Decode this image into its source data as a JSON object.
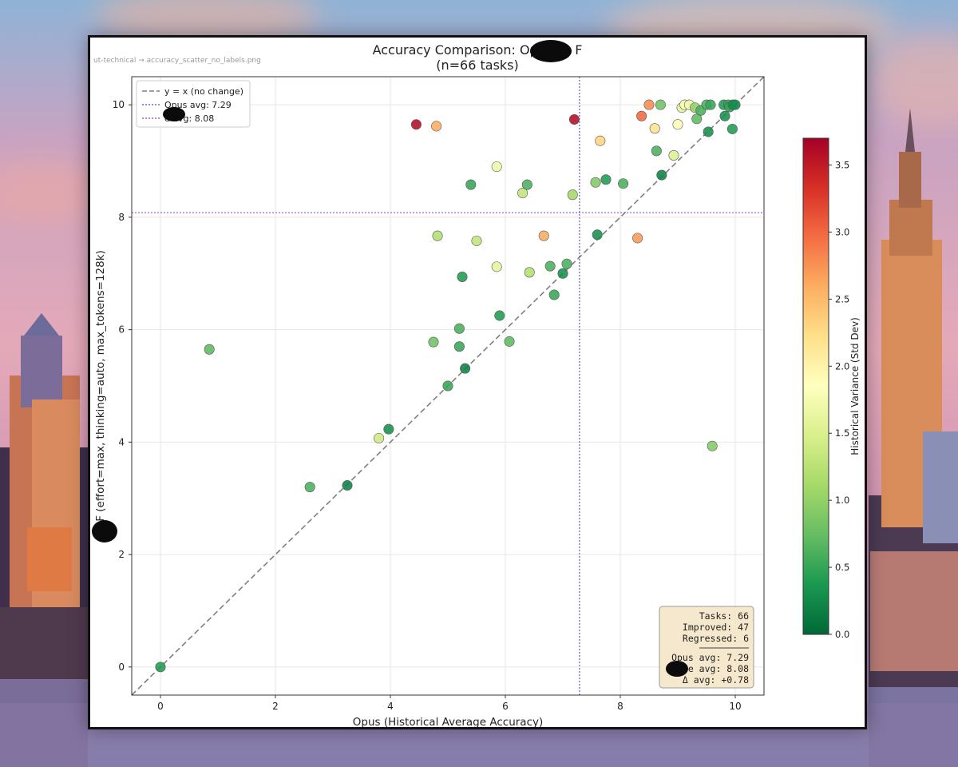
{
  "file_label": "ut-technical → accuracy_scatter_no_labels.png",
  "chart_data": {
    "type": "scatter",
    "title_line1": "Accuracy Comparison: Opus vs F",
    "title_line2": "(n=66 tasks)",
    "xlabel": "Opus (Historical Average Accuracy)",
    "ylabel": "F    (effort=max, thinking=auto, max_tokens=128k)",
    "xlim": [
      -0.5,
      10.5
    ],
    "ylim": [
      -0.5,
      10.5
    ],
    "x_ticks": [
      "0",
      "2",
      "4",
      "6",
      "8",
      "10"
    ],
    "y_ticks": [
      "0",
      "2",
      "4",
      "6",
      "8",
      "10"
    ],
    "grid": true,
    "legend_position": "top-left",
    "legend": [
      {
        "label": "y = x (no change)",
        "style": "dashed",
        "color": "#7f7f7f"
      },
      {
        "label": "Opus avg: 7.29",
        "style": "dotted",
        "color": "#6b6bdc"
      },
      {
        "label": "e avg: 8.08",
        "style": "dotted",
        "color": "#a064c8"
      }
    ],
    "opus_avg": 7.29,
    "other_avg": 8.08,
    "colorbar": {
      "label": "Historical Variance (Std Dev)",
      "min": 0.0,
      "max": 3.7,
      "ticks": [
        "0.0",
        "0.5",
        "1.0",
        "1.5",
        "2.0",
        "2.5",
        "3.0",
        "3.5"
      ],
      "colormap": [
        "#006837",
        "#1a9850",
        "#66bd63",
        "#a6d96a",
        "#d9ef8b",
        "#ffffbf",
        "#fee08b",
        "#fdae61",
        "#f46d43",
        "#d73027",
        "#a50026"
      ]
    },
    "stats_box": {
      "tasks": "Tasks: 66",
      "improved": "Improved: 47",
      "regressed": "Regressed: 6",
      "opus_avg": "Opus avg: 7.29",
      "other_avg": "e avg: 8.08",
      "delta_avg": "Δ avg: +0.78"
    },
    "points": [
      {
        "x": 0.0,
        "y": 0.0,
        "v": 0.4
      },
      {
        "x": 0.85,
        "y": 5.65,
        "v": 0.7
      },
      {
        "x": 2.6,
        "y": 3.2,
        "v": 0.6
      },
      {
        "x": 3.25,
        "y": 3.23,
        "v": 0.2
      },
      {
        "x": 3.8,
        "y": 4.07,
        "v": 1.4
      },
      {
        "x": 3.97,
        "y": 4.23,
        "v": 0.3
      },
      {
        "x": 4.45,
        "y": 9.65,
        "v": 3.6
      },
      {
        "x": 4.8,
        "y": 9.62,
        "v": 2.6
      },
      {
        "x": 4.82,
        "y": 7.67,
        "v": 1.2
      },
      {
        "x": 4.75,
        "y": 5.78,
        "v": 0.8
      },
      {
        "x": 5.0,
        "y": 5.0,
        "v": 0.5
      },
      {
        "x": 5.2,
        "y": 6.02,
        "v": 0.6
      },
      {
        "x": 5.2,
        "y": 5.7,
        "v": 0.5
      },
      {
        "x": 5.25,
        "y": 6.94,
        "v": 0.4
      },
      {
        "x": 5.3,
        "y": 5.31,
        "v": 0.2
      },
      {
        "x": 5.4,
        "y": 8.58,
        "v": 0.5
      },
      {
        "x": 5.5,
        "y": 7.58,
        "v": 1.3
      },
      {
        "x": 5.85,
        "y": 8.9,
        "v": 1.7
      },
      {
        "x": 5.85,
        "y": 7.12,
        "v": 1.6
      },
      {
        "x": 5.9,
        "y": 6.25,
        "v": 0.4
      },
      {
        "x": 6.07,
        "y": 5.79,
        "v": 0.7
      },
      {
        "x": 6.3,
        "y": 8.43,
        "v": 1.3
      },
      {
        "x": 6.38,
        "y": 8.58,
        "v": 0.6
      },
      {
        "x": 6.42,
        "y": 7.02,
        "v": 1.2
      },
      {
        "x": 6.67,
        "y": 7.67,
        "v": 2.6
      },
      {
        "x": 6.78,
        "y": 7.13,
        "v": 0.6
      },
      {
        "x": 6.85,
        "y": 6.62,
        "v": 0.5
      },
      {
        "x": 7.0,
        "y": 7.0,
        "v": 0.3
      },
      {
        "x": 7.07,
        "y": 7.17,
        "v": 0.6
      },
      {
        "x": 7.17,
        "y": 8.4,
        "v": 1.1
      },
      {
        "x": 7.2,
        "y": 9.74,
        "v": 3.6
      },
      {
        "x": 7.57,
        "y": 8.62,
        "v": 0.9
      },
      {
        "x": 7.6,
        "y": 7.69,
        "v": 0.3
      },
      {
        "x": 7.65,
        "y": 9.36,
        "v": 2.3
      },
      {
        "x": 7.75,
        "y": 8.67,
        "v": 0.4
      },
      {
        "x": 8.05,
        "y": 8.6,
        "v": 0.6
      },
      {
        "x": 8.3,
        "y": 7.63,
        "v": 2.7
      },
      {
        "x": 8.37,
        "y": 9.8,
        "v": 3.0
      },
      {
        "x": 8.5,
        "y": 10.0,
        "v": 2.8
      },
      {
        "x": 8.6,
        "y": 9.58,
        "v": 2.2
      },
      {
        "x": 8.63,
        "y": 9.18,
        "v": 0.6
      },
      {
        "x": 8.7,
        "y": 10.0,
        "v": 0.8
      },
      {
        "x": 8.72,
        "y": 8.75,
        "v": 0.2
      },
      {
        "x": 8.93,
        "y": 9.1,
        "v": 1.5
      },
      {
        "x": 9.0,
        "y": 9.65,
        "v": 1.8
      },
      {
        "x": 9.07,
        "y": 9.95,
        "v": 1.6
      },
      {
        "x": 9.12,
        "y": 10.0,
        "v": 1.8
      },
      {
        "x": 9.2,
        "y": 10.0,
        "v": 1.7
      },
      {
        "x": 9.3,
        "y": 9.95,
        "v": 1.0
      },
      {
        "x": 9.33,
        "y": 9.75,
        "v": 0.7
      },
      {
        "x": 9.4,
        "y": 9.9,
        "v": 0.6
      },
      {
        "x": 9.5,
        "y": 10.0,
        "v": 0.6
      },
      {
        "x": 9.53,
        "y": 9.52,
        "v": 0.3
      },
      {
        "x": 9.57,
        "y": 10.0,
        "v": 0.5
      },
      {
        "x": 9.6,
        "y": 3.93,
        "v": 0.9
      },
      {
        "x": 9.8,
        "y": 10.0,
        "v": 0.4
      },
      {
        "x": 9.82,
        "y": 9.8,
        "v": 0.3
      },
      {
        "x": 9.88,
        "y": 10.0,
        "v": 0.5
      },
      {
        "x": 9.9,
        "y": 9.96,
        "v": 0.5
      },
      {
        "x": 9.95,
        "y": 9.57,
        "v": 0.4
      },
      {
        "x": 9.96,
        "y": 10.0,
        "v": 0.3
      },
      {
        "x": 10.0,
        "y": 10.0,
        "v": 0.3
      }
    ]
  }
}
